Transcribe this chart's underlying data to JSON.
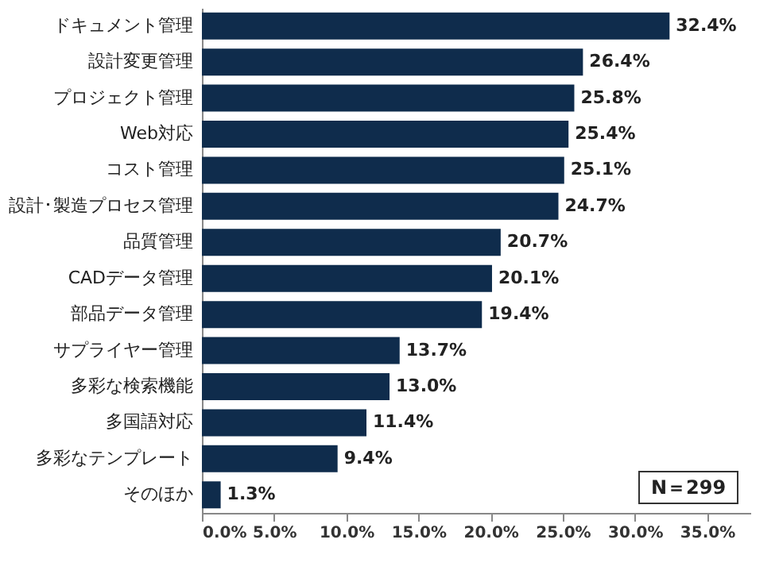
{
  "chart_data": {
    "type": "bar",
    "orientation": "horizontal",
    "categories": [
      "ドキュメント管理",
      "設計変更管理",
      "プロジェクト管理",
      "Web対応",
      "コスト管理",
      "設計･製造プロセス管理",
      "品質管理",
      "CADデータ管理",
      "部品データ管理",
      "サプライヤー管理",
      "多彩な検索機能",
      "多国語対応",
      "多彩なテンプレート",
      "そのほか"
    ],
    "values": [
      32.4,
      26.4,
      25.8,
      25.4,
      25.1,
      24.7,
      20.7,
      20.1,
      19.4,
      13.7,
      13.0,
      11.4,
      9.4,
      1.3
    ],
    "value_labels": [
      "32.4%",
      "26.4%",
      "25.8%",
      "25.4%",
      "25.1%",
      "24.7%",
      "20.7%",
      "20.1%",
      "19.4%",
      "13.7%",
      "13.0%",
      "11.4%",
      "9.4%",
      "1.3%"
    ],
    "color": "#0f2c4c",
    "xlim": [
      0,
      38
    ],
    "xticks": [
      {
        "value": 0,
        "label": "0.0%"
      },
      {
        "value": 5,
        "label": "5.0%"
      },
      {
        "value": 10,
        "label": "10.0%"
      },
      {
        "value": 15,
        "label": "15.0%"
      },
      {
        "value": 20,
        "label": "20.0%"
      },
      {
        "value": 25,
        "label": "25.0%"
      },
      {
        "value": 30,
        "label": "30.0%"
      },
      {
        "value": 35,
        "label": "35.0%"
      }
    ],
    "annotations": [
      "N＝299"
    ]
  }
}
